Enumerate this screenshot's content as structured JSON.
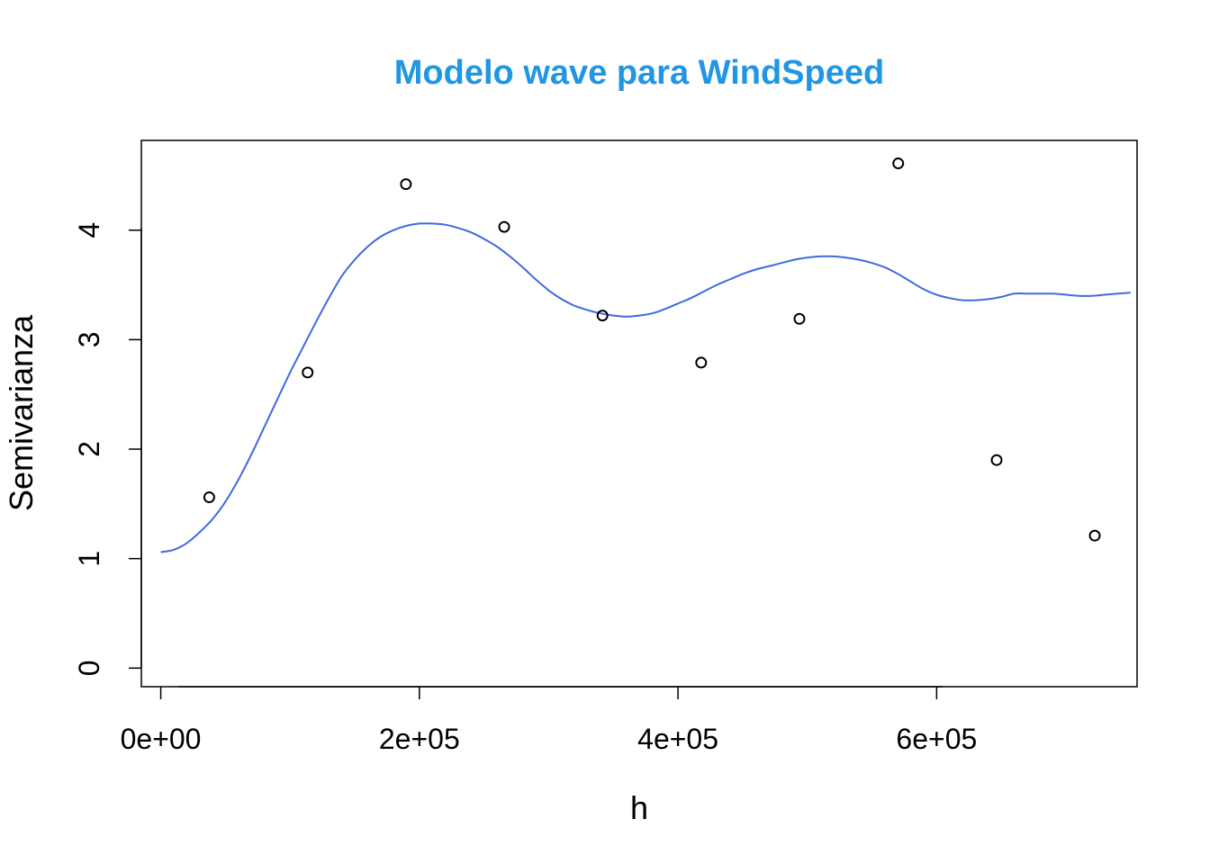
{
  "chart_data": {
    "type": "scatter",
    "title": "Modelo wave para WindSpeed",
    "xlabel": "h",
    "ylabel": "Semivarianza",
    "xlim": [
      -15000,
      755000
    ],
    "ylim": [
      -0.17,
      4.82
    ],
    "x_ticks": [
      0,
      200000,
      400000,
      600000
    ],
    "x_tick_labels": [
      "0e+00",
      "2e+05",
      "4e+05",
      "6e+05"
    ],
    "y_ticks": [
      0,
      1,
      2,
      3,
      4
    ],
    "y_tick_labels": [
      "0",
      "1",
      "2",
      "3",
      "4"
    ],
    "grid": false,
    "series": [
      {
        "kind": "points",
        "x": [
          37500,
          113600,
          189600,
          265600,
          341600,
          417900,
          493900,
          570300,
          646400,
          722300
        ],
        "y": [
          1.56,
          2.7,
          4.42,
          4.03,
          3.22,
          2.79,
          3.19,
          4.61,
          1.9,
          1.21
        ],
        "marker": "open-circle",
        "color": "#000000"
      },
      {
        "kind": "model-curve",
        "x": [
          0,
          10000,
          20000,
          30000,
          40000,
          50000,
          60000,
          70000,
          80000,
          90000,
          100000,
          110000,
          120000,
          130000,
          140000,
          150000,
          160000,
          170000,
          180000,
          190000,
          200000,
          210000,
          220000,
          230000,
          240000,
          250000,
          260000,
          270000,
          280000,
          290000,
          300000,
          310000,
          320000,
          330000,
          340000,
          350000,
          360000,
          370000,
          380000,
          390000,
          400000,
          410000,
          420000,
          430000,
          440000,
          450000,
          460000,
          470000,
          480000,
          490000,
          500000,
          510000,
          520000,
          530000,
          540000,
          550000,
          560000,
          570000,
          580000,
          590000,
          600000,
          610000,
          620000,
          630000,
          640000,
          650000,
          660000,
          670000,
          680000,
          690000,
          700000,
          710000,
          720000,
          730000,
          740000,
          750000
        ],
        "y": [
          1.06,
          1.08,
          1.14,
          1.24,
          1.36,
          1.52,
          1.72,
          1.95,
          2.2,
          2.45,
          2.7,
          2.93,
          3.16,
          3.38,
          3.58,
          3.73,
          3.85,
          3.94,
          4.0,
          4.04,
          4.06,
          4.06,
          4.05,
          4.02,
          3.98,
          3.92,
          3.85,
          3.76,
          3.66,
          3.55,
          3.45,
          3.37,
          3.31,
          3.27,
          3.24,
          3.22,
          3.21,
          3.22,
          3.24,
          3.28,
          3.33,
          3.38,
          3.44,
          3.5,
          3.55,
          3.6,
          3.64,
          3.67,
          3.7,
          3.73,
          3.75,
          3.76,
          3.76,
          3.75,
          3.73,
          3.7,
          3.66,
          3.6,
          3.53,
          3.46,
          3.41,
          3.38,
          3.36,
          3.36,
          3.37,
          3.39,
          3.42,
          3.42,
          3.42,
          3.42,
          3.41,
          3.4,
          3.4,
          3.41,
          3.42,
          3.43
        ],
        "color": "#4169E1"
      }
    ]
  }
}
